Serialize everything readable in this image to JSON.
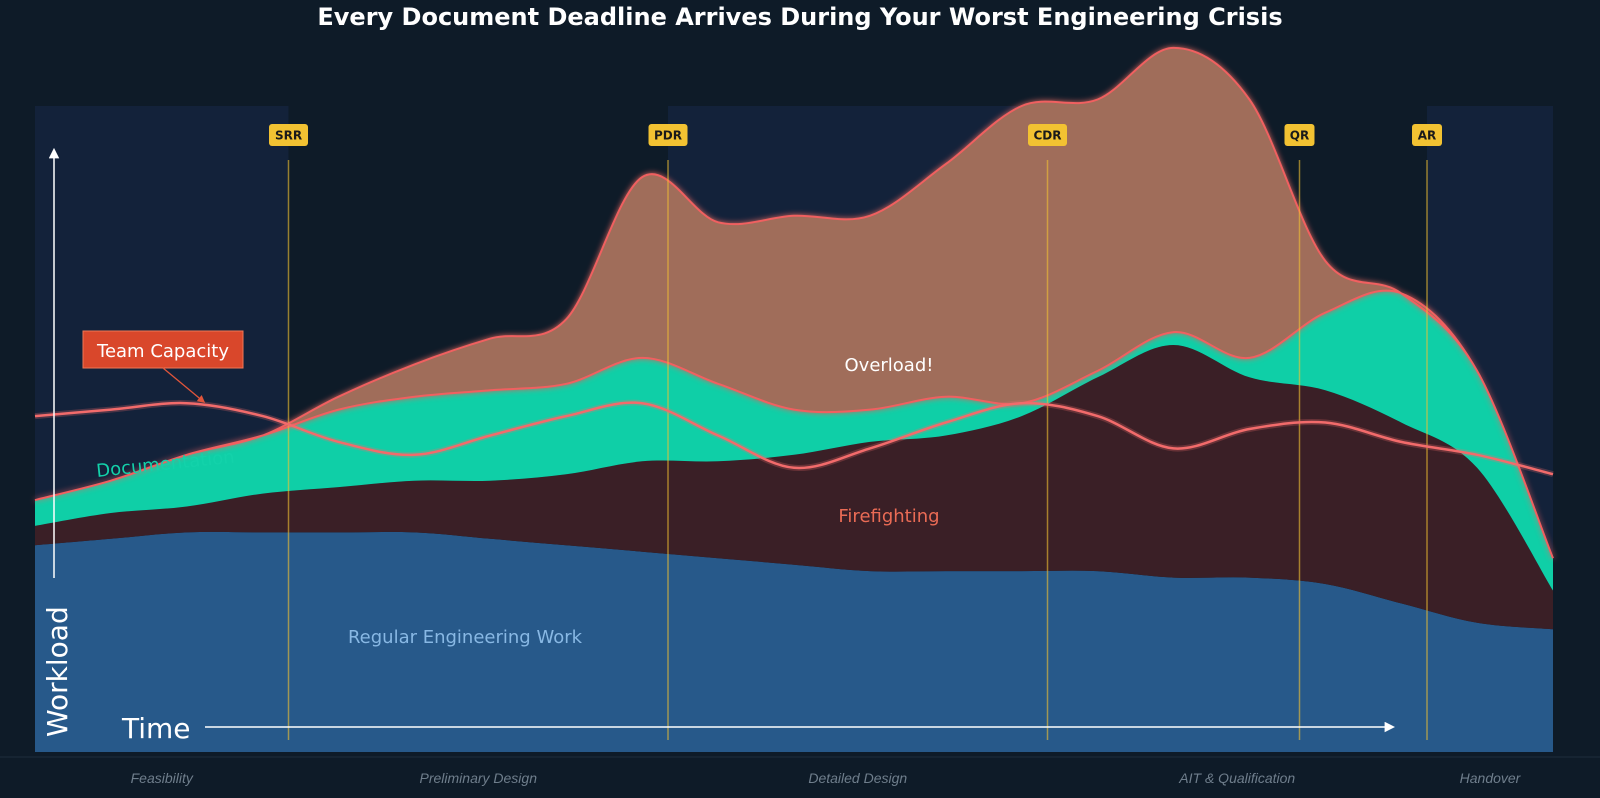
{
  "chart_data": {
    "type": "area",
    "title": "Every Document Deadline Arrives During Your Worst Engineering Crisis",
    "xlabel": "Time",
    "ylabel": "Workload",
    "xlim": [
      0,
      100
    ],
    "ylim": [
      0,
      100
    ],
    "x": [
      0,
      5,
      10,
      15,
      20,
      25,
      30,
      35,
      40,
      45,
      50,
      55,
      60,
      65,
      70,
      75,
      80,
      85,
      90,
      95,
      100
    ],
    "phases": [
      {
        "name": "Feasibility",
        "start": 0,
        "end": 16.7
      },
      {
        "name": "Preliminary Design",
        "start": 16.7,
        "end": 41.7
      },
      {
        "name": "Detailed Design",
        "start": 41.7,
        "end": 66.7
      },
      {
        "name": "AIT & Qualification",
        "start": 66.7,
        "end": 91.7
      },
      {
        "name": "Handover",
        "start": 91.7,
        "end": 100
      }
    ],
    "milestones": [
      {
        "label": "SRR",
        "x": 16.7
      },
      {
        "label": "PDR",
        "x": 41.7
      },
      {
        "label": "CDR",
        "x": 66.7
      },
      {
        "label": "QR",
        "x": 83.3
      },
      {
        "label": "AR",
        "x": 91.7
      }
    ],
    "series": [
      {
        "name": "Regular Engineering Work",
        "color": "#27598a",
        "values": [
          32,
          33,
          34,
          34,
          34,
          34,
          33,
          32,
          31,
          30,
          29,
          28,
          28,
          28,
          28,
          27,
          27,
          26,
          23,
          20,
          19
        ]
      },
      {
        "name": "Firefighting",
        "color": "#3a1f26",
        "values": [
          3,
          4,
          4,
          6,
          7,
          8,
          9,
          11,
          14,
          15,
          17,
          20,
          21,
          24,
          30,
          36,
          31,
          30,
          28,
          24,
          6
        ]
      },
      {
        "name": "Documentation",
        "color": "#0fcfa7",
        "values": [
          4,
          5,
          8,
          9,
          12,
          13,
          14,
          14,
          16,
          12,
          7,
          5,
          6,
          2,
          1,
          2,
          3,
          12,
          20,
          15,
          5
        ]
      },
      {
        "name": "Overload!",
        "color": "#a06e5a",
        "values": [
          0,
          0,
          0,
          0,
          2,
          5,
          8,
          10,
          28,
          25,
          30,
          30,
          36,
          46,
          42,
          44,
          40,
          8,
          0,
          0,
          0
        ]
      }
    ],
    "capacity": {
      "name": "Team Capacity",
      "color": "#f26b6b",
      "values": [
        52,
        53,
        54,
        52,
        48,
        46,
        49,
        52,
        54,
        49,
        44,
        47,
        51,
        54,
        52,
        47,
        50,
        51,
        48,
        46,
        43
      ]
    },
    "annotations": {
      "capacity_callout": "Team Capacity",
      "overload": "Overload!",
      "firefighting": "Firefighting",
      "documentation": "Documentation",
      "regular": "Regular Engineering Work"
    },
    "colors": {
      "background": "#0e1b28",
      "phase_band": "#13223a",
      "milestone": "#f2c232",
      "callout": "#d9472b",
      "firefighting_label": "#ea6b55",
      "documentation_label": "#13d2aa",
      "regular_label": "#88b8e4",
      "overload_excess": "#b3302f"
    }
  }
}
